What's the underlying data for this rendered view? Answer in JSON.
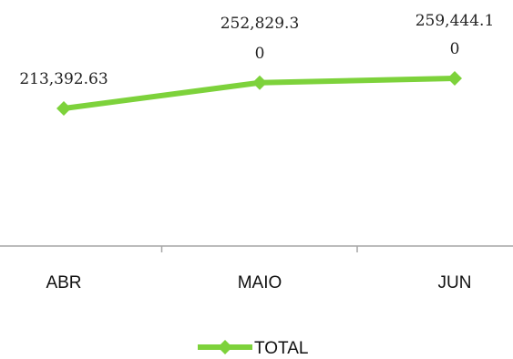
{
  "chart_data": {
    "type": "line",
    "categories": [
      "ABR",
      "MAIO",
      "JUN"
    ],
    "series": [
      {
        "name": "TOTAL",
        "values": [
          213392.63,
          252829.3,
          259444.1
        ],
        "color": "#7dd23b"
      }
    ],
    "data_labels": [
      [
        "213,392.63"
      ],
      [
        "252,829.3",
        "0"
      ],
      [
        "259,444.1",
        "0"
      ]
    ],
    "legend": {
      "position": "bottom",
      "label": "TOTAL"
    },
    "grid": false
  }
}
